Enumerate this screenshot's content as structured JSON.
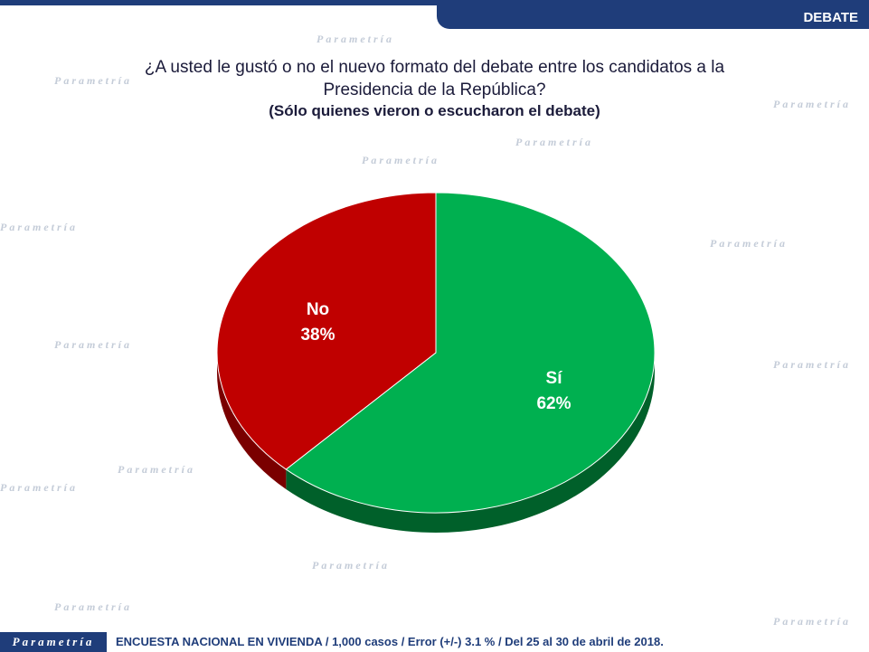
{
  "header": {
    "tag": "DEBATE"
  },
  "question": {
    "line1": "¿A usted le gustó o no el nuevo formato del debate entre los candidatos a la",
    "line2": "Presidencia de la República?",
    "subtitle": "(Sólo quienes vieron o escucharon el debate)"
  },
  "watermark_text": "Parametría",
  "chart_data": {
    "type": "pie",
    "slices": [
      {
        "label": "Sí",
        "value": 62,
        "value_label": "62%",
        "color": "#00b050",
        "side_color": "#00602a"
      },
      {
        "label": "No",
        "value": 38,
        "value_label": "38%",
        "color": "#c00000",
        "side_color": "#7a0000"
      }
    ]
  },
  "footer": {
    "brand": "Parametría",
    "note": "ENCUESTA NACIONAL EN VIVIENDA / 1,000 casos / Error (+/-) 3.1 % / Del 25 al 30 de abril de 2018."
  }
}
